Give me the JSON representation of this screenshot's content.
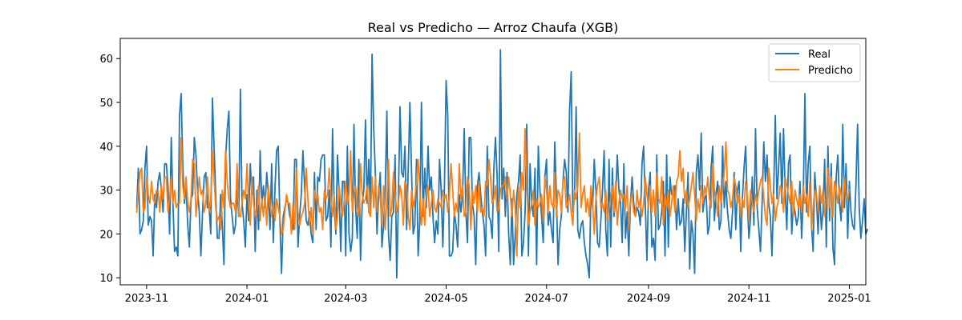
{
  "chart_data": {
    "type": "line",
    "title": "Real vs Predicho — Arroz Chaufa (XGB)",
    "xlabel": "",
    "ylabel": "",
    "x_start": "2023-10-26",
    "x_end": "2024-12-31",
    "x_step": "1 day",
    "xlim": [
      "2023-10-16",
      "2025-01-11"
    ],
    "ylim": [
      8.4,
      64.6
    ],
    "grid": false,
    "legend_position": "top-right",
    "x_ticks": [
      {
        "label": "2023-11",
        "date": "2023-11-01"
      },
      {
        "label": "2024-01",
        "date": "2024-01-01"
      },
      {
        "label": "2024-03",
        "date": "2024-03-01"
      },
      {
        "label": "2024-05",
        "date": "2024-05-01"
      },
      {
        "label": "2024-07",
        "date": "2024-07-01"
      },
      {
        "label": "2024-09",
        "date": "2024-09-01"
      },
      {
        "label": "2024-11",
        "date": "2024-11-01"
      },
      {
        "label": "2025-01",
        "date": "2025-01-01"
      }
    ],
    "y_ticks": [
      10,
      20,
      30,
      40,
      50,
      60
    ],
    "series": [
      {
        "name": "Real",
        "color": "#1f77b4",
        "values": [
          26,
          35,
          20,
          21,
          23,
          35,
          40,
          22,
          24,
          23,
          15,
          29,
          26,
          32,
          34,
          30,
          25,
          36,
          36,
          31,
          20,
          42,
          27,
          16,
          17,
          15,
          47,
          52,
          36,
          27,
          31,
          22,
          17,
          28,
          29,
          42,
          38,
          30,
          25,
          15,
          25,
          33,
          34,
          26,
          26,
          20,
          51,
          40,
          29,
          19,
          19,
          29,
          22,
          13,
          37,
          44,
          48,
          28,
          24,
          20,
          22,
          30,
          24,
          53,
          27,
          23,
          17,
          29,
          23,
          36,
          29,
          33,
          16,
          30,
          21,
          39,
          27,
          31,
          26,
          34,
          29,
          21,
          36,
          18,
          30,
          39,
          40,
          23,
          11,
          24,
          26,
          28,
          27,
          24,
          23,
          21,
          37,
          37,
          17,
          24,
          29,
          39,
          31,
          23,
          22,
          25,
          20,
          18,
          34,
          21,
          33,
          32,
          37,
          38,
          38,
          23,
          24,
          30,
          17,
          44,
          26,
          20,
          38,
          29,
          16,
          32,
          32,
          15,
          40,
          20,
          16,
          19,
          45,
          26,
          19,
          37,
          14,
          27,
          30,
          46,
          27,
          37,
          25,
          61,
          44,
          34,
          20,
          29,
          34,
          17,
          22,
          30,
          48,
          20,
          14,
          24,
          25,
          38,
          10,
          28,
          49,
          34,
          33,
          40,
          21,
          35,
          50,
          34,
          20,
          22,
          37,
          15,
          23,
          50,
          24,
          35,
          26,
          40,
          30,
          33,
          24,
          18,
          23,
          20,
          37,
          30,
          17,
          31,
          55,
          47,
          15,
          15,
          16,
          25,
          22,
          17,
          29,
          25,
          29,
          44,
          25,
          18,
          42,
          42,
          27,
          24,
          13,
          31,
          34,
          29,
          25,
          22,
          15,
          40,
          24,
          23,
          19,
          35,
          42,
          33,
          16,
          62,
          28,
          35,
          24,
          34,
          20,
          13,
          28,
          13,
          20,
          29,
          32,
          38,
          15,
          18,
          25,
          45,
          15,
          36,
          27,
          24,
          35,
          13,
          40,
          30,
          24,
          18,
          33,
          37,
          22,
          25,
          21,
          18,
          41,
          29,
          13,
          21,
          24,
          32,
          37,
          34,
          25,
          48,
          57,
          25,
          28,
          49,
          21,
          19,
          22,
          23,
          18,
          15,
          13,
          10,
          30,
          26,
          37,
          30,
          18,
          17,
          23,
          30,
          39,
          21,
          15,
          37,
          17,
          35,
          24,
          28,
          38,
          30,
          27,
          18,
          36,
          19,
          25,
          15,
          27,
          33,
          27,
          24,
          26,
          25,
          22,
          36,
          40,
          27,
          14,
          30,
          34,
          17,
          19,
          14,
          38,
          21,
          22,
          25,
          32,
          15,
          38,
          17,
          33,
          29,
          30,
          31,
          21,
          28,
          22,
          23,
          28,
          16,
          25,
          34,
          12,
          23,
          20,
          11,
          34,
          38,
          30,
          43,
          25,
          28,
          29,
          20,
          22,
          35,
          40,
          23,
          29,
          32,
          21,
          23,
          40,
          26,
          32,
          25,
          21,
          19,
          25,
          34,
          21,
          30,
          32,
          16,
          28,
          35,
          40,
          27,
          19,
          24,
          33,
          22,
          44,
          26,
          21,
          16,
          27,
          41,
          32,
          38,
          27,
          24,
          15,
          29,
          47,
          28,
          35,
          43,
          27,
          44,
          30,
          21,
          36,
          38,
          20,
          27,
          25,
          22,
          24,
          32,
          19,
          28,
          52,
          25,
          36,
          40,
          22,
          16,
          34,
          28,
          20,
          30,
          21,
          25,
          37,
          17,
          40,
          23,
          36,
          17,
          13,
          33,
          38,
          27,
          23,
          45,
          26,
          36,
          19,
          32,
          25,
          22,
          21,
          31,
          45,
          26,
          19,
          23,
          28,
          20,
          21
        ]
      },
      {
        "name": "Predicho",
        "color": "#ff7f0e",
        "values": [
          25,
          30,
          34,
          35,
          25,
          26,
          33,
          29,
          27,
          32,
          28,
          27,
          30,
          30,
          25,
          31,
          28,
          33,
          33,
          25,
          28,
          33,
          27,
          30,
          26,
          27,
          27,
          42,
          31,
          28,
          33,
          27,
          25,
          28,
          37,
          36,
          24,
          28,
          33,
          29,
          30,
          25,
          27,
          33,
          25,
          28,
          39,
          33,
          26,
          23,
          24,
          21,
          30,
          26,
          39,
          32,
          28,
          26,
          27,
          27,
          25,
          36,
          24,
          24,
          27,
          30,
          28,
          36,
          27,
          22,
          33,
          27,
          24,
          25,
          31,
          23,
          28,
          24,
          29,
          22,
          31,
          27,
          24,
          27,
          23,
          28,
          26,
          24,
          20,
          21,
          25,
          29,
          27,
          27,
          20,
          27,
          21,
          35,
          25,
          22,
          24,
          25,
          27,
          35,
          28,
          22,
          26,
          20,
          30,
          28,
          29,
          25,
          26,
          21,
          30,
          28,
          29,
          35,
          28,
          24,
          29,
          21,
          24,
          31,
          27,
          24,
          27,
          32,
          27,
          29,
          39,
          25,
          29,
          31,
          26,
          24,
          36,
          29,
          27,
          28,
          31,
          25,
          24,
          33,
          26,
          33,
          25,
          31,
          28,
          22,
          31,
          21,
          28,
          37,
          24,
          26,
          34,
          29,
          25,
          27,
          31,
          29,
          22,
          32,
          31,
          24,
          21,
          30,
          26,
          28,
          32,
          37,
          30,
          22,
          28,
          22,
          30,
          31,
          24,
          27,
          30,
          26,
          25,
          28,
          27,
          26,
          30,
          28,
          29,
          25,
          29,
          36,
          30,
          24,
          27,
          25,
          36,
          28,
          31,
          24,
          25,
          33,
          31,
          21,
          30,
          27,
          31,
          25,
          32,
          25,
          26,
          24,
          32,
          31,
          37,
          33,
          27,
          28,
          31,
          25,
          26,
          30,
          31,
          31,
          33,
          28,
          33,
          29,
          24,
          30,
          26,
          15,
          31,
          26,
          34,
          30,
          44,
          32,
          22,
          25,
          27,
          30,
          22,
          28,
          26,
          27,
          29,
          23,
          33,
          30,
          25,
          31,
          27,
          26,
          34,
          24,
          30,
          29,
          25,
          32,
          33,
          26,
          27,
          29,
          25,
          22,
          30,
          28,
          31,
          43,
          26,
          29,
          31,
          25,
          28,
          24,
          31,
          27,
          20,
          28,
          31,
          33,
          26,
          27,
          25,
          30,
          23,
          26,
          28,
          31,
          25,
          32,
          22,
          27,
          30,
          28,
          29,
          26,
          31,
          21,
          28,
          29,
          25,
          24,
          30,
          26,
          28,
          24,
          27,
          33,
          29,
          26,
          31,
          25,
          30,
          24,
          34,
          28,
          27,
          33,
          22,
          29,
          26,
          30,
          24,
          27,
          31,
          25,
          32,
          33,
          39,
          32,
          35,
          27,
          30,
          26,
          28,
          31,
          34,
          29,
          23,
          28,
          25,
          31,
          27,
          31,
          29,
          33,
          28,
          26,
          36,
          30,
          28,
          24,
          31,
          27,
          30,
          34,
          41,
          30,
          29,
          26,
          28,
          33,
          31,
          27,
          29,
          24,
          28,
          26,
          32,
          29,
          23,
          30,
          27,
          25,
          29,
          27,
          30,
          32,
          33,
          28,
          24,
          22,
          35,
          31,
          27,
          29,
          23,
          26,
          28,
          31,
          30,
          25,
          33,
          31,
          29,
          27,
          32,
          24,
          30,
          28,
          26,
          29,
          25,
          31,
          27,
          29,
          24,
          32,
          21,
          26,
          30,
          29,
          25,
          31,
          27,
          30,
          24,
          28,
          35,
          26,
          33,
          24,
          32,
          30,
          27,
          31,
          29,
          25,
          33,
          29,
          28,
          30
        ]
      }
    ]
  }
}
